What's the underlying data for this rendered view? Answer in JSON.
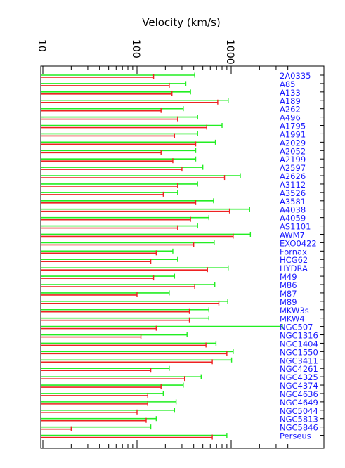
{
  "chart_data": {
    "type": "bar",
    "xlabel": "Velocity (km/s)",
    "scale": "log",
    "xlim": [
      10,
      4000
    ],
    "ticks": [
      {
        "value": 10,
        "label": "10"
      },
      {
        "value": 100,
        "label": "100"
      },
      {
        "value": 1000,
        "label": "1000"
      }
    ],
    "categories": [
      "2A0335",
      "A85",
      "A133",
      "A189",
      "A262",
      "A496",
      "A1795",
      "A1991",
      "A2029",
      "A2052",
      "A2199",
      "A2597",
      "A2626",
      "A3112",
      "A3526",
      "A3581",
      "A4038",
      "A4059",
      "AS1101",
      "AWM7",
      "EXO0422",
      "Fornax",
      "HCG62",
      "HYDRA",
      "M49",
      "M86",
      "M87",
      "M89",
      "MKW3s",
      "MKW4",
      "NGC507",
      "NGC1316",
      "NGC1404",
      "NGC1550",
      "NGC3411",
      "NGC4261",
      "NGC4325",
      "NGC4374",
      "NGC4636",
      "NGC4649",
      "NGC5044",
      "NGC5813",
      "NGC5846",
      "Perseus"
    ],
    "series": [
      {
        "color": "#ee2222",
        "values": [
          150,
          220,
          235,
          720,
          180,
          270,
          550,
          250,
          420,
          180,
          240,
          300,
          850,
          270,
          190,
          420,
          960,
          370,
          270,
          1050,
          400,
          160,
          140,
          560,
          150,
          410,
          100,
          740,
          360,
          360,
          160,
          110,
          540,
          900,
          630,
          140,
          320,
          180,
          130,
          130,
          100,
          125,
          20,
          630
        ]
      },
      {
        "color": "#22ee22",
        "values": [
          410,
          330,
          370,
          930,
          310,
          440,
          800,
          440,
          680,
          420,
          420,
          500,
          1250,
          440,
          270,
          650,
          1570,
          580,
          440,
          1600,
          660,
          240,
          270,
          930,
          250,
          670,
          220,
          920,
          580,
          580,
          3500,
          340,
          690,
          1050,
          1010,
          220,
          480,
          310,
          190,
          260,
          250,
          160,
          140,
          900
        ]
      }
    ],
    "colors": {
      "label": "#1a1aff",
      "frame": "#000000"
    }
  }
}
